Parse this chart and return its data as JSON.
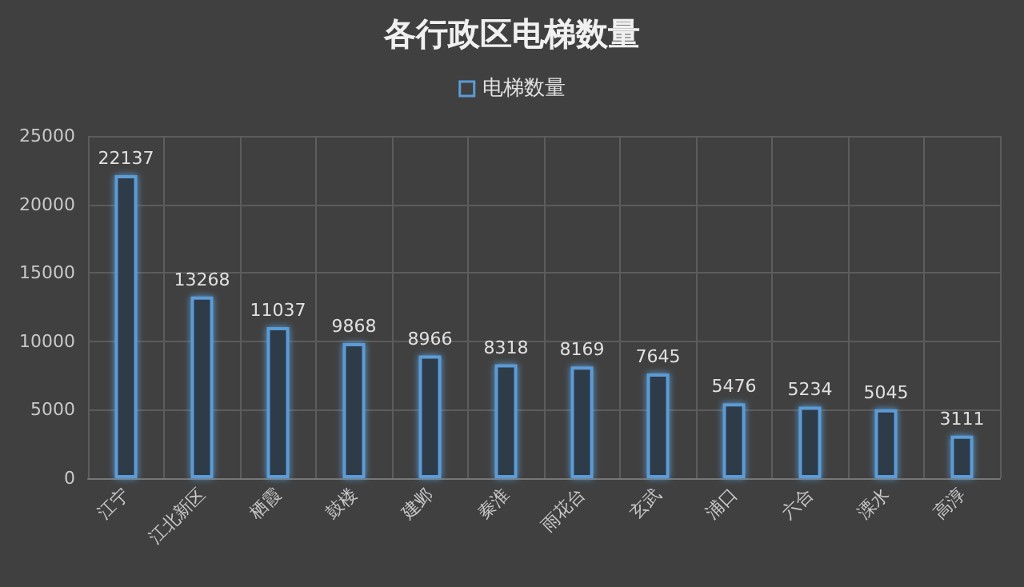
{
  "chart_data": {
    "type": "bar",
    "title": "各行政区电梯数量",
    "categories": [
      "江宁",
      "江北新区",
      "栖霞",
      "鼓楼",
      "建邺",
      "秦淮",
      "雨花台",
      "玄武",
      "浦口",
      "六合",
      "溧水",
      "高淳"
    ],
    "series": [
      {
        "name": "电梯数量",
        "color": "#5b9bd5",
        "values": [
          22137,
          13268,
          11037,
          9868,
          8966,
          8318,
          8169,
          7645,
          5476,
          5234,
          5045,
          3111
        ]
      }
    ],
    "ylim": [
      0,
      25000
    ],
    "yticks": [
      0,
      5000,
      10000,
      15000,
      20000,
      25000
    ],
    "grid": true,
    "legend": "top",
    "data_labels": true
  }
}
